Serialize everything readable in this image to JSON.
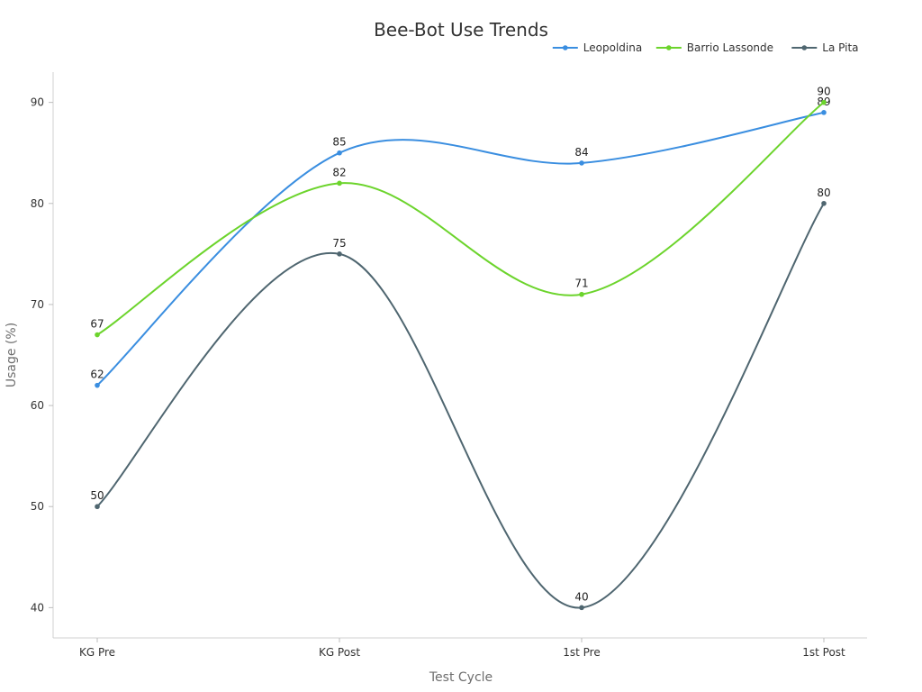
{
  "chart_data": {
    "type": "line",
    "title": "Bee-Bot Use Trends",
    "xlabel": "Test Cycle",
    "ylabel": "Usage (%)",
    "categories": [
      "KG Pre",
      "KG Post",
      "1st Pre",
      "1st Post"
    ],
    "yticks": [
      40,
      50,
      60,
      70,
      80,
      90
    ],
    "ylim": [
      37,
      93
    ],
    "grid": false,
    "legend_position": "top-right",
    "curve": "smooth",
    "series": [
      {
        "name": "Leopoldina",
        "color": "#3a8ee0",
        "values": [
          62,
          85,
          84,
          89
        ]
      },
      {
        "name": "Barrio Lassonde",
        "color": "#6cd42c",
        "values": [
          67,
          82,
          71,
          90
        ]
      },
      {
        "name": "La Pita",
        "color": "#4f6670",
        "values": [
          50,
          75,
          40,
          80
        ]
      }
    ]
  }
}
